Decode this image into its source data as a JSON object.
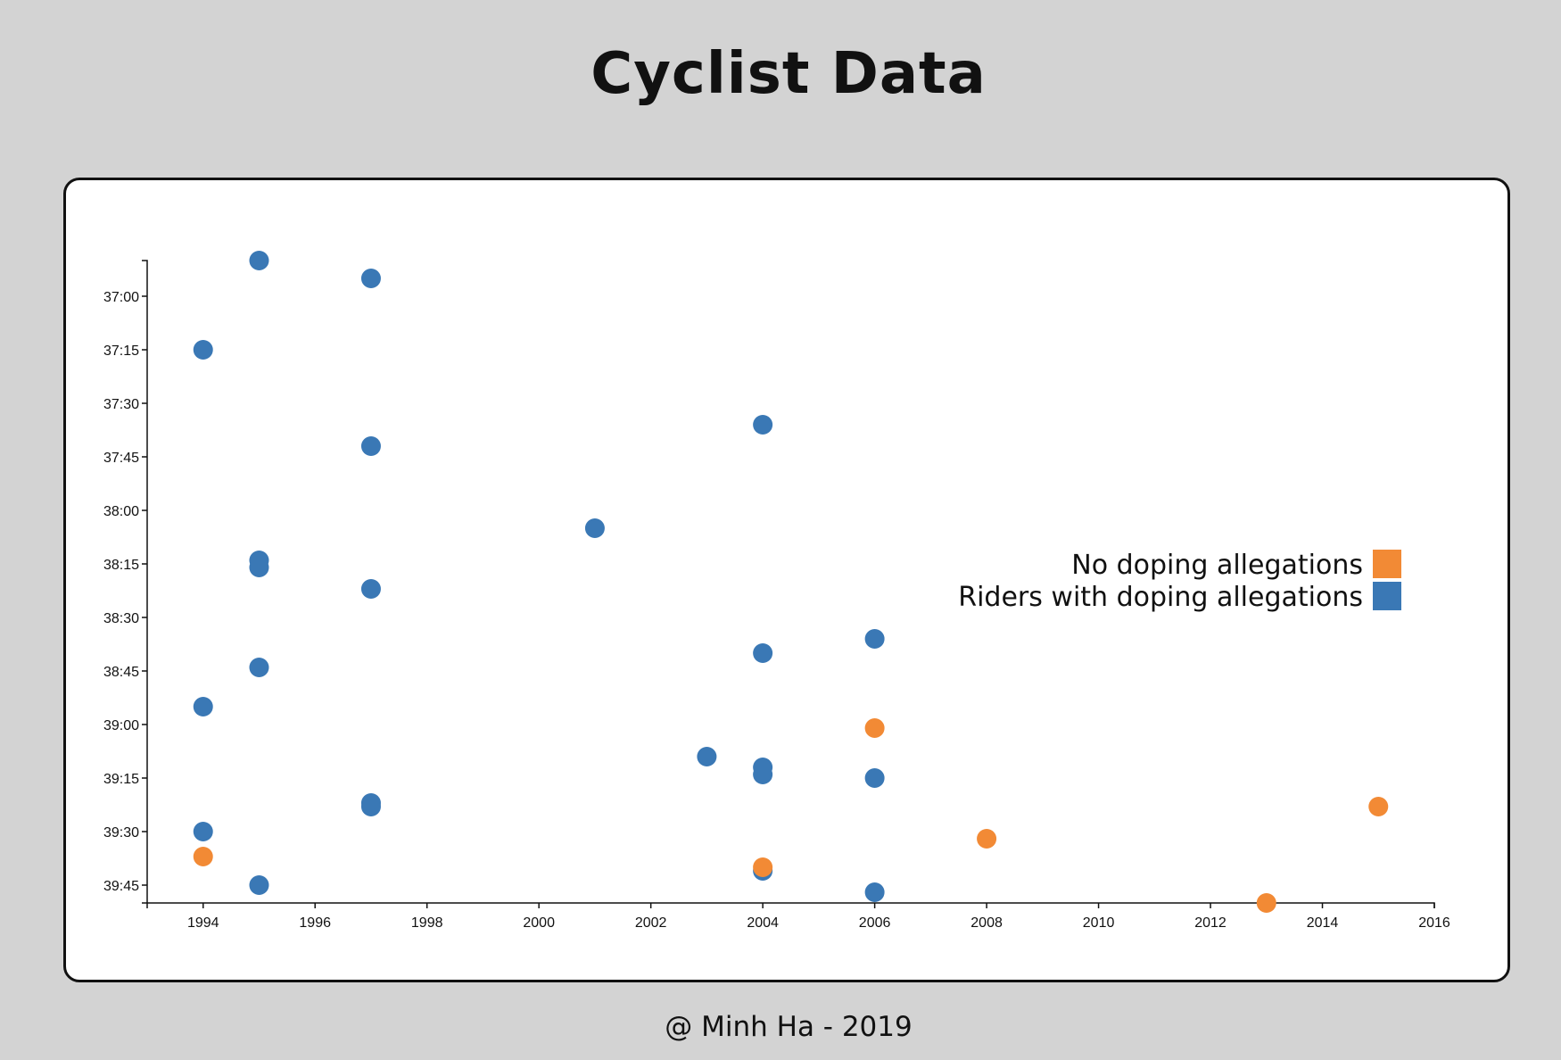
{
  "page": {
    "title": "Cyclist Data",
    "footer": "@ Minh Ha - 2019"
  },
  "colors": {
    "no_doping": "#f28a35",
    "doping": "#3a78b5",
    "background": "#d3d3d3",
    "card": "#ffffff"
  },
  "chart_data": {
    "type": "scatter",
    "title": "",
    "xlabel": "",
    "ylabel": "",
    "xlim": [
      1993,
      2016
    ],
    "ylim": [
      "36:50",
      "39:50"
    ],
    "x_ticks": [
      "1994",
      "1996",
      "1998",
      "2000",
      "2002",
      "2004",
      "2006",
      "2008",
      "2010",
      "2012",
      "2014",
      "2016"
    ],
    "y_ticks": [
      "37:00",
      "37:15",
      "37:30",
      "37:45",
      "38:00",
      "38:15",
      "38:30",
      "38:45",
      "39:00",
      "39:15",
      "39:30",
      "39:45"
    ],
    "y_axis_inverted": true,
    "legend": {
      "position": "right",
      "items": [
        {
          "label": "No doping allegations",
          "color": "#f28a35"
        },
        {
          "label": "Riders with doping allegations",
          "color": "#3a78b5"
        }
      ]
    },
    "series": [
      {
        "name": "Riders with doping allegations",
        "color": "#3a78b5",
        "points": [
          {
            "x": 1995,
            "y": "36:50"
          },
          {
            "x": 1997,
            "y": "36:55"
          },
          {
            "x": 1994,
            "y": "37:15"
          },
          {
            "x": 2004,
            "y": "37:36"
          },
          {
            "x": 1997,
            "y": "37:42"
          },
          {
            "x": 2001,
            "y": "38:05"
          },
          {
            "x": 1995,
            "y": "38:14"
          },
          {
            "x": 1995,
            "y": "38:16"
          },
          {
            "x": 1997,
            "y": "38:22"
          },
          {
            "x": 2006,
            "y": "38:36"
          },
          {
            "x": 2004,
            "y": "38:40"
          },
          {
            "x": 1995,
            "y": "38:44"
          },
          {
            "x": 1994,
            "y": "38:55"
          },
          {
            "x": 2003,
            "y": "39:09"
          },
          {
            "x": 2004,
            "y": "39:12"
          },
          {
            "x": 2004,
            "y": "39:14"
          },
          {
            "x": 2006,
            "y": "39:15"
          },
          {
            "x": 1997,
            "y": "39:22"
          },
          {
            "x": 1997,
            "y": "39:23"
          },
          {
            "x": 1994,
            "y": "39:30"
          },
          {
            "x": 2004,
            "y": "39:41"
          },
          {
            "x": 1995,
            "y": "39:45"
          },
          {
            "x": 2006,
            "y": "39:47"
          }
        ]
      },
      {
        "name": "No doping allegations",
        "color": "#f28a35",
        "points": [
          {
            "x": 2006,
            "y": "39:01"
          },
          {
            "x": 2015,
            "y": "39:23"
          },
          {
            "x": 2008,
            "y": "39:32"
          },
          {
            "x": 1994,
            "y": "39:37"
          },
          {
            "x": 2004,
            "y": "39:40"
          },
          {
            "x": 2013,
            "y": "39:50"
          }
        ]
      }
    ]
  }
}
